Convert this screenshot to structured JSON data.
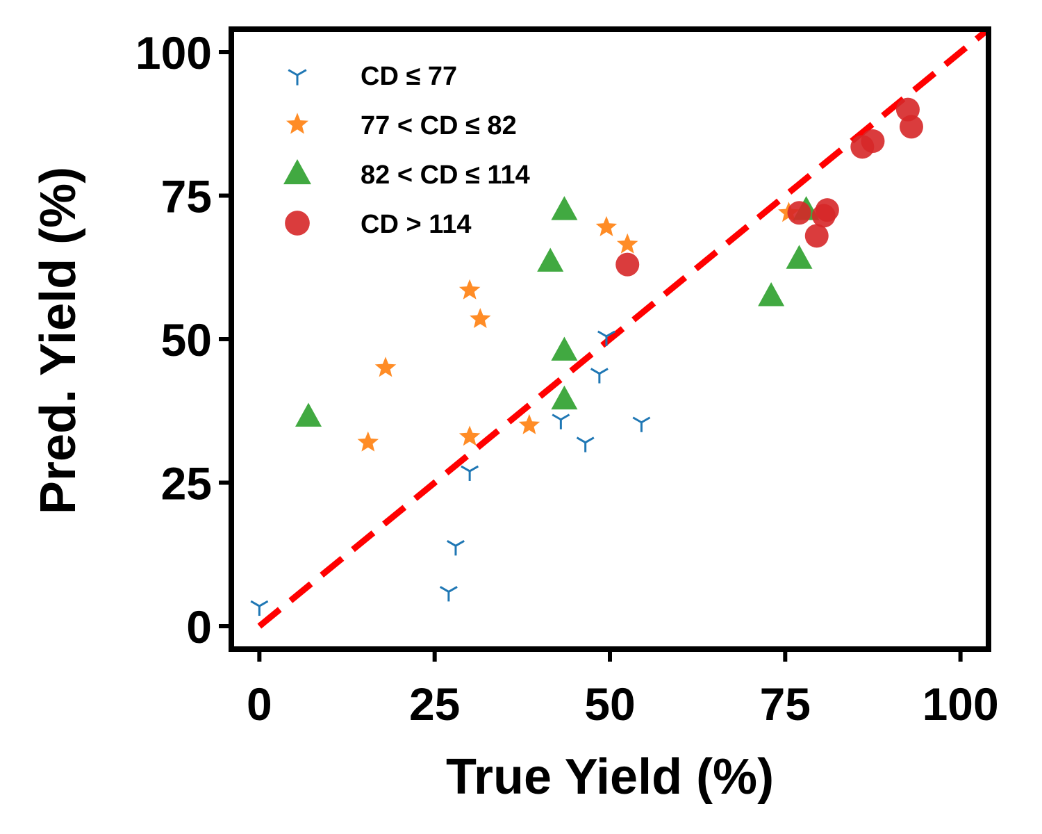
{
  "chart_data": {
    "type": "scatter",
    "title": "",
    "xlabel": "True Yield (%)",
    "ylabel": "Pred. Yield (%)",
    "xlim": [
      -4,
      104
    ],
    "ylim": [
      -4,
      104
    ],
    "xticks": [
      "0",
      "25",
      "50",
      "75",
      "100"
    ],
    "yticks": [
      "0",
      "25",
      "50",
      "75",
      "100"
    ],
    "grid": false,
    "legend_position": "top-left",
    "reference_line": {
      "type": "identity",
      "style": "dashed",
      "color": "#ff0000"
    },
    "series": [
      {
        "name": "CD ≤ 77",
        "marker": "tri-down",
        "color": "#1f77b4",
        "points": [
          [
            0,
            3.5
          ],
          [
            27,
            6
          ],
          [
            28,
            14
          ],
          [
            30,
            27
          ],
          [
            43,
            36
          ],
          [
            46.5,
            32
          ],
          [
            48.5,
            44
          ],
          [
            49.5,
            50.5
          ],
          [
            54.5,
            35.5
          ]
        ]
      },
      {
        "name": "77 < CD ≤ 82",
        "marker": "star",
        "color": "#ff7f0e",
        "points": [
          [
            15.5,
            32
          ],
          [
            18,
            45
          ],
          [
            30,
            58.5
          ],
          [
            31.5,
            53.5
          ],
          [
            30,
            33
          ],
          [
            38.5,
            35
          ],
          [
            49.5,
            69.5
          ],
          [
            52.5,
            66.5
          ],
          [
            75.5,
            72
          ]
        ]
      },
      {
        "name": "82 < CD ≤ 114",
        "marker": "triangle-up",
        "color": "#2ca02c",
        "points": [
          [
            7,
            36.5
          ],
          [
            41.5,
            63.5
          ],
          [
            43.5,
            72.5
          ],
          [
            43.5,
            48
          ],
          [
            43.5,
            39.5
          ],
          [
            73,
            57.5
          ],
          [
            77,
            64
          ],
          [
            78,
            72.5
          ]
        ]
      },
      {
        "name": "CD > 114",
        "marker": "circle",
        "color": "#d62728",
        "points": [
          [
            52.5,
            63
          ],
          [
            77,
            72
          ],
          [
            79.5,
            68
          ],
          [
            80.5,
            71.5
          ],
          [
            81,
            72.5
          ],
          [
            86,
            83.5
          ],
          [
            87.5,
            84.5
          ],
          [
            92.5,
            90
          ],
          [
            93,
            87
          ]
        ]
      }
    ]
  }
}
